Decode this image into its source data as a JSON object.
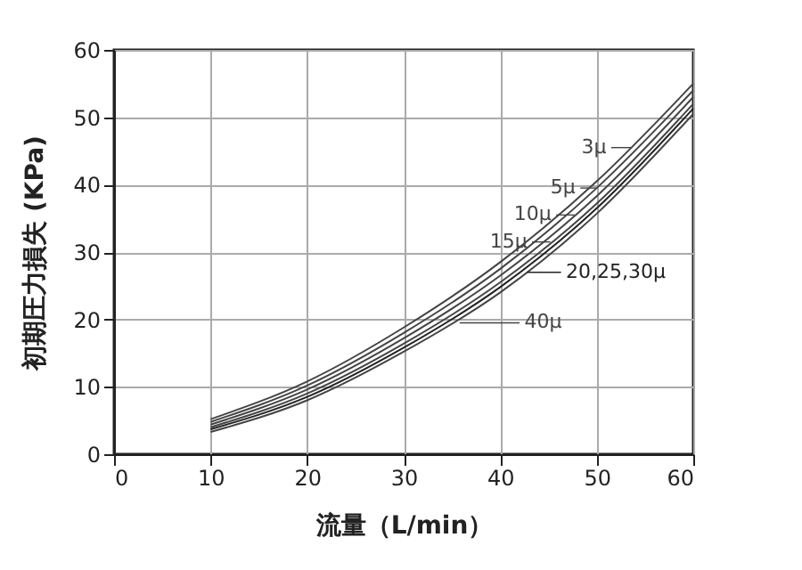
{
  "chart_data": {
    "type": "line",
    "xlabel": "流量（L/min）",
    "ylabel": "初期圧力損失 (KPa)",
    "x": [
      10,
      20,
      30,
      40,
      50,
      60
    ],
    "series": [
      {
        "name": "3μ",
        "color": "#444444",
        "values": [
          5.2,
          10.8,
          18.8,
          28.5,
          40.5,
          55
        ]
      },
      {
        "name": "5μ",
        "color": "#444444",
        "values": [
          4.8,
          10.2,
          18,
          27.5,
          39.5,
          54
        ]
      },
      {
        "name": "10μ",
        "color": "#444444",
        "values": [
          4.4,
          9.6,
          17.2,
          26.5,
          38.3,
          53
        ]
      },
      {
        "name": "15μ",
        "color": "#444444",
        "values": [
          4.0,
          9.0,
          16.4,
          25.5,
          37.2,
          52
        ]
      },
      {
        "name": "20,25,30μ",
        "color": "#222222",
        "values": [
          3.7,
          8.5,
          15.8,
          24.8,
          36.5,
          51.3
        ]
      },
      {
        "name": "40μ",
        "color": "#444444",
        "values": [
          3.3,
          8.0,
          15.2,
          24.0,
          35.7,
          50.5
        ]
      }
    ],
    "xlim": [
      0,
      60
    ],
    "ylim": [
      0,
      60
    ],
    "xticks": [
      0,
      10,
      20,
      30,
      40,
      50,
      60
    ],
    "yticks": [
      0,
      10,
      20,
      30,
      40,
      50,
      60
    ],
    "grid": true,
    "legend": "right",
    "marker": "none",
    "line_style": "solid"
  }
}
